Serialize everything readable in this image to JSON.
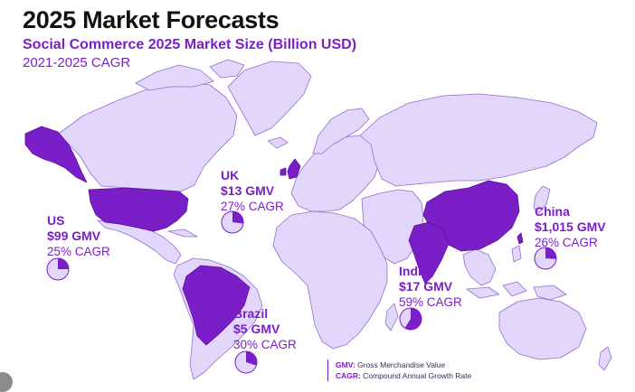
{
  "header": {
    "title": "2025 Market Forecasts",
    "subtitle": "Social Commerce 2025 Market Size (Billion USD)",
    "subtitle2": "2021-2025 CAGR"
  },
  "colors": {
    "land": "#e3d6fb",
    "border": "#8f6fd0",
    "highlight": "#7a1fc7",
    "text": "#7a1fc7"
  },
  "regions": [
    {
      "name": "US",
      "gmv": "$99 GMV",
      "cagr": "25% CAGR",
      "cagr_pct": 25
    },
    {
      "name": "UK",
      "gmv": "$13 GMV",
      "cagr": "27% CAGR",
      "cagr_pct": 27
    },
    {
      "name": "Brazil",
      "gmv": "$5 GMV",
      "cagr": "30% CAGR",
      "cagr_pct": 30
    },
    {
      "name": "India",
      "gmv": "$17 GMV",
      "cagr": "59% CAGR",
      "cagr_pct": 59
    },
    {
      "name": "China",
      "gmv": "$1,015 GMV",
      "cagr": "26% CAGR",
      "cagr_pct": 26
    }
  ],
  "legend": {
    "gmv_key": "GMV:",
    "gmv_text": " Gross Merchandise Value",
    "cagr_key": "CAGR:",
    "cagr_text": " Compound Annual Growth Rate"
  }
}
